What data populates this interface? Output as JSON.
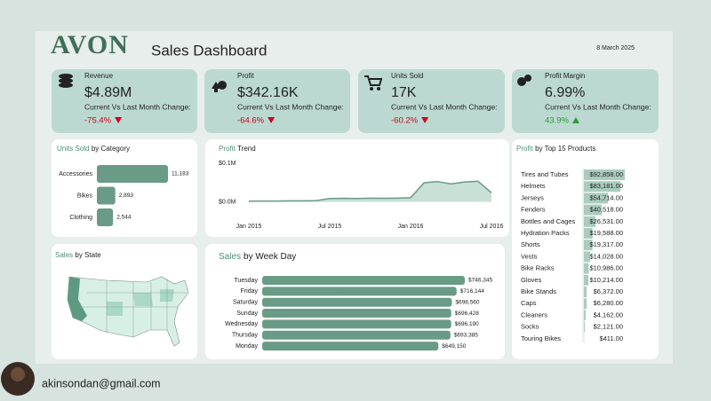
{
  "header": {
    "logo": "AVON",
    "title": "Sales Dashboard",
    "date": "8 March 2025"
  },
  "kpis": [
    {
      "label": "Revenue",
      "value": "$4.89M",
      "change_label": "Current Vs Last Month Change:",
      "change": "-75.4%"
    },
    {
      "label": "Profit",
      "value": "$342.16K",
      "change_label": "Current Vs Last Month Change:",
      "change": "-64.6%"
    },
    {
      "label": "Units Sold",
      "value": "17K",
      "change_label": "Current Vs Last Month Change:",
      "change": "-60.2%"
    },
    {
      "label": "Profit Margin",
      "value": "6.99%",
      "change_label": "Current Vs Last Month Change:",
      "change": "43.9%"
    }
  ],
  "chart_data": [
    {
      "type": "hbar",
      "title_lead": "Units Sold",
      "title_rest": "by Category",
      "categories": [
        "Accessories",
        "Bikes",
        "Clothing"
      ],
      "values": [
        11183,
        2893,
        2544
      ],
      "value_labels": [
        "11,183",
        "2,893",
        "2,544"
      ],
      "color": "#6a9b87"
    },
    {
      "type": "area",
      "title_lead": "Profit",
      "title_rest": "Trend",
      "x": [
        "2015-01",
        "2015-02",
        "2015-03",
        "2015-04",
        "2015-05",
        "2015-06",
        "2015-07",
        "2015-08",
        "2015-09",
        "2015-10",
        "2015-11",
        "2015-12",
        "2016-01",
        "2016-02",
        "2016-03",
        "2016-04",
        "2016-05",
        "2016-06",
        "2016-07"
      ],
      "values": [
        2000,
        2500,
        2500,
        3000,
        3000,
        3500,
        9000,
        9500,
        9000,
        10000,
        9500,
        10000,
        11000,
        50000,
        53000,
        47000,
        52000,
        54000,
        24000
      ],
      "xticks": [
        {
          "value": "2015-01",
          "label": "Jan 2015"
        },
        {
          "value": "2015-07",
          "label": "Jul 2015"
        },
        {
          "value": "2016-01",
          "label": "Jan 2016"
        },
        {
          "value": "2016-07",
          "label": "Jul 2016"
        }
      ],
      "ylim": [
        -10000,
        110000
      ],
      "yticks": [
        {
          "value": 0,
          "label": "$0.0M"
        },
        {
          "value": 100000,
          "label": "$0.1M"
        }
      ],
      "color": "#6a9b87"
    },
    {
      "type": "map",
      "title_lead": "Sales",
      "title_rest": "by State"
    },
    {
      "type": "hbar",
      "title_lead": "Sales",
      "title_rest": "by Week Day",
      "categories": [
        "Tuesday",
        "Friday",
        "Saturday",
        "Sunday",
        "Wednesday",
        "Thursday",
        "Monday"
      ],
      "values": [
        746345,
        716144,
        698560,
        696428,
        696190,
        693385,
        649150
      ],
      "value_labels": [
        "$746,345",
        "$716,144",
        "$698,560",
        "$696,428",
        "$696,190",
        "$693,385",
        "$649,150"
      ],
      "color": "#6a9b87"
    },
    {
      "type": "table-bar",
      "title_lead": "Profit",
      "title_rest": "by Top 15 Products",
      "categories": [
        "Tires and Tubes",
        "Helmets",
        "Jerseys",
        "Fenders",
        "Bottles and Cages",
        "Hydration Packs",
        "Shorts",
        "Vests",
        "Bike Racks",
        "Gloves",
        "Bike Stands",
        "Caps",
        "Cleaners",
        "Socks",
        "Touring Bikes"
      ],
      "values": [
        92858,
        83181,
        54714,
        40518,
        26531,
        19588,
        19317,
        14028,
        10986,
        10214,
        6372,
        6280,
        4162,
        2121,
        411
      ],
      "value_labels": [
        "$92,858.00",
        "$83,181.00",
        "$54,714.00",
        "$40,518.00",
        "$26,531.00",
        "$19,588.00",
        "$19,317.00",
        "$14,028.00",
        "$10,986.00",
        "$10,214.00",
        "$6,372.00",
        "$6,280.00",
        "$4,162.00",
        "$2,121.00",
        "$411.00"
      ],
      "color": "#8dbba9"
    }
  ],
  "footer": {
    "email": "akinsondan@gmail.com"
  }
}
